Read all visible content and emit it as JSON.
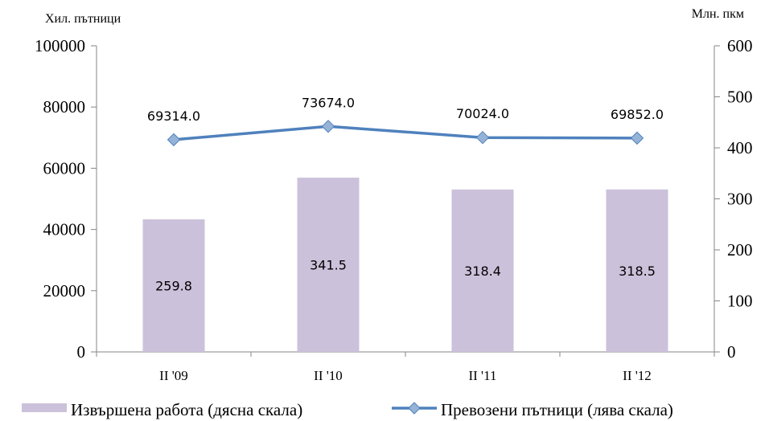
{
  "chart_data": {
    "type": "bar+line",
    "categories": [
      "II '09",
      "II '10",
      "II '11",
      "II '12"
    ],
    "series": [
      {
        "name": "Извършена работа (дясна скала)",
        "type": "bar",
        "axis": "right",
        "values": [
          259.8,
          341.5,
          318.4,
          318.5
        ],
        "labels": [
          "259.8",
          "341.5",
          "318.4",
          "318.5"
        ],
        "color": "#CCC1DA"
      },
      {
        "name": "Превозени пътници (лява скала)",
        "type": "line",
        "axis": "left",
        "values": [
          69314.0,
          73674.0,
          70024.0,
          69852.0
        ],
        "labels": [
          "69314.0",
          "73674.0",
          "70024.0",
          "69852.0"
        ],
        "color": "#4F81BD",
        "marker_color": "#95B3D7"
      }
    ],
    "ylabel_left": "Хил. пътници",
    "ylabel_right": "Млн. пкм",
    "ylim_left": [
      0,
      100000
    ],
    "ylim_right": [
      0,
      600
    ],
    "yticks_left": [
      "0",
      "20000",
      "40000",
      "60000",
      "80000",
      "100000"
    ],
    "yticks_right": [
      "0",
      "100",
      "200",
      "300",
      "400",
      "500",
      "600"
    ],
    "grid": false,
    "legend": "bottom"
  }
}
